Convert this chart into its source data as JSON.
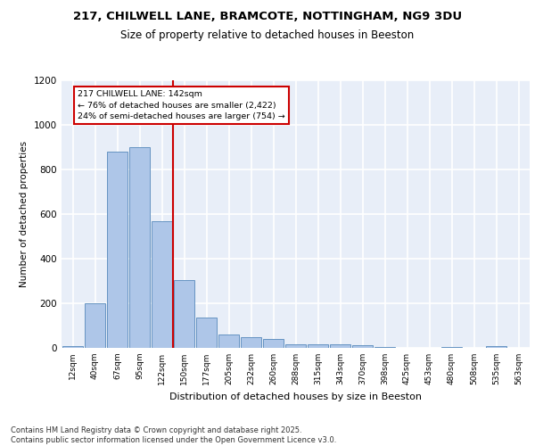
{
  "title_line1": "217, CHILWELL LANE, BRAMCOTE, NOTTINGHAM, NG9 3DU",
  "title_line2": "Size of property relative to detached houses in Beeston",
  "xlabel": "Distribution of detached houses by size in Beeston",
  "ylabel": "Number of detached properties",
  "categories": [
    "12sqm",
    "40sqm",
    "67sqm",
    "95sqm",
    "122sqm",
    "150sqm",
    "177sqm",
    "205sqm",
    "232sqm",
    "260sqm",
    "288sqm",
    "315sqm",
    "343sqm",
    "370sqm",
    "398sqm",
    "425sqm",
    "453sqm",
    "480sqm",
    "508sqm",
    "535sqm",
    "563sqm"
  ],
  "values": [
    10,
    200,
    880,
    900,
    570,
    305,
    135,
    62,
    47,
    40,
    15,
    18,
    15,
    11,
    3,
    1,
    0,
    5,
    1,
    10,
    0
  ],
  "bar_color": "#aec6e8",
  "bar_edge_color": "#5588bb",
  "background_color": "#e8eef8",
  "grid_color": "#ffffff",
  "vline_x": 4.5,
  "vline_color": "#cc0000",
  "annotation_text": "217 CHILWELL LANE: 142sqm\n← 76% of detached houses are smaller (2,422)\n24% of semi-detached houses are larger (754) →",
  "annotation_box_color": "#ffffff",
  "annotation_box_edge": "#cc0000",
  "footnote": "Contains HM Land Registry data © Crown copyright and database right 2025.\nContains public sector information licensed under the Open Government Licence v3.0.",
  "ylim": [
    0,
    1200
  ],
  "yticks": [
    0,
    200,
    400,
    600,
    800,
    1000,
    1200
  ]
}
